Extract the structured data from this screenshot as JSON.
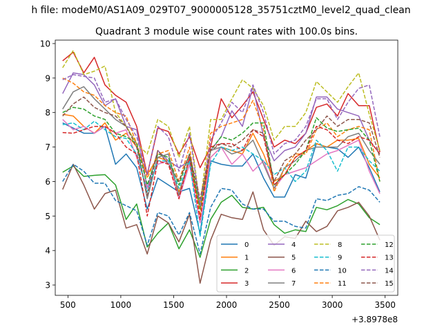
{
  "figure": {
    "suptitle": "h file: modeM0/AS1A09_029T07_9000005128_35751cztM0_level2_quad_clean",
    "title": "Quadrant 3 module wise count rates with 100.0s bins.",
    "x_offset_label": "+3.8978e8"
  },
  "chart_data": {
    "type": "line",
    "title": "Quadrant 3 module wise count rates with 100.0s bins.",
    "xlim": [
      380,
      3620
    ],
    "ylim": [
      2.7,
      10.1
    ],
    "x_ticks": [
      500,
      1000,
      1500,
      2000,
      2500,
      3000,
      3500
    ],
    "y_ticks": [
      3,
      4,
      5,
      6,
      7,
      8,
      9,
      10
    ],
    "x_offset": 389780000,
    "legend_position": "lower right",
    "legend_columns": 4,
    "x": [
      450,
      550,
      650,
      750,
      850,
      950,
      1050,
      1150,
      1250,
      1350,
      1450,
      1550,
      1650,
      1750,
      1850,
      1950,
      2050,
      2150,
      2250,
      2350,
      2450,
      2550,
      2650,
      2750,
      2850,
      2950,
      3050,
      3150,
      3250,
      3350,
      3450
    ],
    "series": [
      {
        "name": "0",
        "color": "#1f77b4",
        "dash": "solid",
        "values": [
          7.7,
          7.55,
          7.4,
          7.4,
          7.6,
          6.5,
          6.8,
          6.4,
          5.2,
          6.1,
          5.9,
          5.7,
          5.8,
          4.5,
          6.6,
          6.5,
          6.45,
          6.45,
          6.8,
          6.1,
          5.55,
          5.55,
          6.2,
          6.1,
          7.1,
          7.0,
          6.95,
          6.7,
          7.0,
          6.4,
          5.7
        ]
      },
      {
        "name": "1",
        "color": "#ff7f0e",
        "dash": "solid",
        "values": [
          7.95,
          7.9,
          7.6,
          7.4,
          7.7,
          7.2,
          7.4,
          7.0,
          6.2,
          6.7,
          6.6,
          5.7,
          6.5,
          5.2,
          6.7,
          7.0,
          6.9,
          6.8,
          7.4,
          6.8,
          6.0,
          6.2,
          6.7,
          6.9,
          7.1,
          7.0,
          7.2,
          7.2,
          7.25,
          6.5,
          6.1
        ]
      },
      {
        "name": "2",
        "color": "#2ca02c",
        "dash": "solid",
        "values": [
          6.27,
          6.45,
          6.15,
          6.18,
          6.2,
          5.9,
          4.9,
          5.35,
          4.1,
          4.5,
          4.8,
          4.05,
          4.6,
          3.8,
          4.9,
          5.4,
          5.6,
          5.25,
          5.2,
          5.25,
          4.75,
          4.5,
          4.6,
          4.55,
          5.25,
          5.18,
          5.3,
          5.48,
          5.35,
          4.95,
          4.75
        ]
      },
      {
        "name": "3",
        "color": "#d62728",
        "dash": "solid",
        "values": [
          9.5,
          9.75,
          9.15,
          9.6,
          8.8,
          8.5,
          8.3,
          7.6,
          6.2,
          7.55,
          7.45,
          6.8,
          7.3,
          6.4,
          7.0,
          8.4,
          7.85,
          8.2,
          8.6,
          7.8,
          7.0,
          7.2,
          7.1,
          7.4,
          8.15,
          8.25,
          7.9,
          8.55,
          8.2,
          8.2,
          6.85
        ]
      },
      {
        "name": "4",
        "color": "#9467bd",
        "dash": "solid",
        "values": [
          8.55,
          9.15,
          9.1,
          8.8,
          8.2,
          8.4,
          7.6,
          7.5,
          5.8,
          6.9,
          6.6,
          6.4,
          6.6,
          5.4,
          6.9,
          7.3,
          8.05,
          7.6,
          8.75,
          7.3,
          6.6,
          6.9,
          7.0,
          7.4,
          8.45,
          8.45,
          8.1,
          8.0,
          7.9,
          7.2,
          6.8
        ]
      },
      {
        "name": "5",
        "color": "#8c564b",
        "dash": "solid",
        "values": [
          5.77,
          6.5,
          5.9,
          5.2,
          5.65,
          5.75,
          4.65,
          4.75,
          3.9,
          5.0,
          4.8,
          4.25,
          5.05,
          3.05,
          4.3,
          5.05,
          4.95,
          4.9,
          5.7,
          4.6,
          4.15,
          4.4,
          4.35,
          4.85,
          4.55,
          4.7,
          5.15,
          5.25,
          5.4,
          5.0,
          4.3
        ]
      },
      {
        "name": "6",
        "color": "#e377c2",
        "dash": "solid",
        "values": [
          7.8,
          7.5,
          7.6,
          7.4,
          7.6,
          7.4,
          7.5,
          6.7,
          5.8,
          6.5,
          6.6,
          5.5,
          6.5,
          4.8,
          6.7,
          7.0,
          6.5,
          6.8,
          6.3,
          6.6,
          5.8,
          6.2,
          6.3,
          6.4,
          6.6,
          6.8,
          6.9,
          7.05,
          7.2,
          6.3,
          5.65
        ]
      },
      {
        "name": "7",
        "color": "#7f7f7f",
        "dash": "solid",
        "values": [
          8.1,
          8.6,
          8.75,
          8.4,
          8.1,
          7.8,
          7.6,
          7.1,
          5.5,
          6.7,
          6.8,
          5.6,
          6.7,
          5.3,
          6.9,
          7.0,
          6.8,
          6.9,
          7.2,
          6.5,
          5.8,
          6.4,
          6.6,
          6.9,
          7.0,
          7.0,
          7.0,
          7.3,
          7.4,
          6.9,
          6.5
        ]
      },
      {
        "name": "8",
        "color": "#bcbd22",
        "dash": "dashed",
        "values": [
          9.3,
          9.8,
          9.1,
          9.2,
          9.35,
          8.0,
          7.6,
          7.1,
          6.8,
          7.8,
          7.6,
          6.7,
          7.6,
          5.3,
          7.8,
          7.8,
          8.4,
          8.95,
          8.7,
          8.2,
          7.2,
          7.6,
          7.6,
          8.0,
          8.9,
          8.6,
          8.3,
          8.75,
          9.15,
          7.95,
          6.9
        ]
      },
      {
        "name": "9",
        "color": "#17becf",
        "dash": "dashed",
        "values": [
          7.65,
          7.7,
          7.5,
          7.75,
          7.5,
          7.3,
          7.25,
          6.8,
          5.7,
          6.6,
          6.6,
          5.8,
          6.6,
          4.4,
          6.5,
          7.0,
          6.9,
          7.0,
          6.8,
          6.6,
          6.2,
          6.4,
          6.0,
          6.3,
          7.2,
          6.9,
          6.3,
          7.0,
          7.0,
          6.6,
          6.3
        ]
      },
      {
        "name": "10",
        "color": "#1f77b4",
        "dash": "dashed",
        "values": [
          6.0,
          6.5,
          6.3,
          5.95,
          5.95,
          5.45,
          5.3,
          5.15,
          4.15,
          5.1,
          5.0,
          4.45,
          5.1,
          3.9,
          5.25,
          5.8,
          5.75,
          5.35,
          5.2,
          5.2,
          4.85,
          4.85,
          4.7,
          4.65,
          5.5,
          5.45,
          5.6,
          5.65,
          5.85,
          5.75,
          5.4
        ]
      },
      {
        "name": "11",
        "color": "#ff7f0e",
        "dash": "dashed",
        "values": [
          9.0,
          8.85,
          8.6,
          8.5,
          8.2,
          8.0,
          7.9,
          7.1,
          6.1,
          6.8,
          6.9,
          6.0,
          7.0,
          5.0,
          7.4,
          7.6,
          7.7,
          7.8,
          8.35,
          7.5,
          5.7,
          6.4,
          6.8,
          6.8,
          7.5,
          7.7,
          7.3,
          7.5,
          7.6,
          7.5,
          6.0
        ]
      },
      {
        "name": "12",
        "color": "#2ca02c",
        "dash": "dashed",
        "values": [
          8.0,
          8.15,
          8.1,
          7.9,
          7.8,
          7.4,
          7.3,
          7.1,
          5.9,
          6.8,
          6.7,
          5.9,
          6.8,
          5.2,
          6.9,
          7.3,
          7.2,
          7.4,
          7.7,
          7.7,
          5.9,
          6.2,
          6.5,
          6.9,
          7.85,
          7.55,
          7.45,
          7.5,
          7.55,
          7.2,
          6.0
        ]
      },
      {
        "name": "13",
        "color": "#d62728",
        "dash": "dashed",
        "values": [
          7.42,
          7.4,
          7.5,
          7.6,
          7.6,
          7.4,
          7.0,
          6.8,
          5.0,
          6.6,
          6.5,
          5.5,
          6.7,
          4.9,
          7.0,
          7.1,
          7.1,
          6.9,
          7.5,
          7.3,
          5.9,
          6.2,
          6.7,
          6.9,
          7.6,
          7.5,
          7.2,
          7.1,
          7.3,
          7.2,
          6.8
        ]
      },
      {
        "name": "14",
        "color": "#9467bd",
        "dash": "dashed",
        "values": [
          8.95,
          9.1,
          9.05,
          9.0,
          8.3,
          8.4,
          7.8,
          7.3,
          6.2,
          7.6,
          7.3,
          6.3,
          7.4,
          5.3,
          7.2,
          7.7,
          8.3,
          8.0,
          8.8,
          8.0,
          6.8,
          7.1,
          7.2,
          7.6,
          8.4,
          8.4,
          7.8,
          8.3,
          8.7,
          8.8,
          7.3
        ]
      },
      {
        "name": "15",
        "color": "#8c564b",
        "dash": "dashed",
        "values": [
          7.9,
          8.25,
          8.45,
          8.15,
          8.0,
          7.9,
          7.6,
          7.0,
          5.6,
          6.9,
          6.5,
          6.0,
          6.8,
          5.5,
          6.9,
          7.1,
          7.0,
          7.2,
          7.5,
          7.4,
          6.0,
          6.6,
          6.8,
          7.2,
          7.5,
          7.9,
          7.6,
          7.8,
          7.8,
          7.7,
          6.7
        ]
      }
    ]
  }
}
